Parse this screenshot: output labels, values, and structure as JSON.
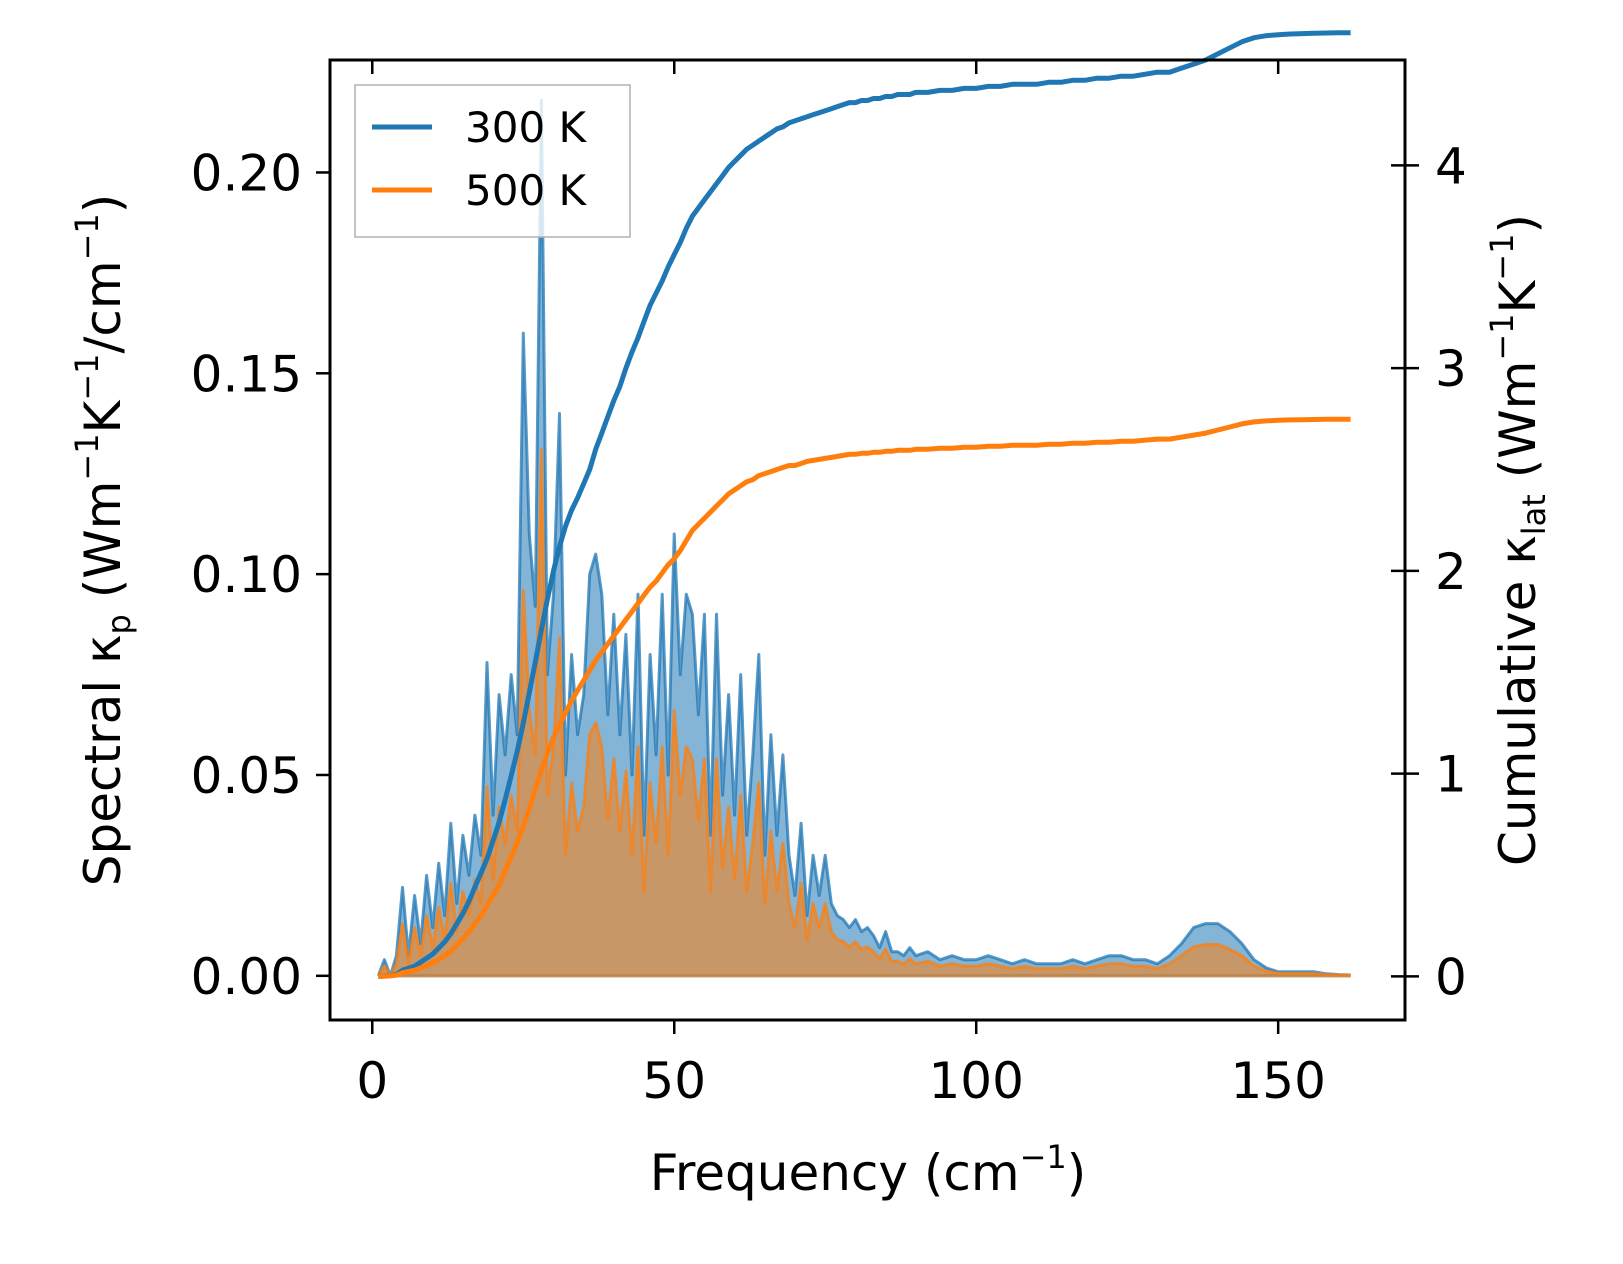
{
  "chart_data": {
    "type": "line",
    "xlabel": "Frequency (cm",
    "xlabel_sup": "−1",
    "xlabel_tail": ")",
    "ylabel_left": {
      "prefix": "Spectral κ",
      "sub": "p",
      "mid": " (Wm",
      "sup1": "−1",
      "k": "K",
      "sup2": "−1",
      "tail": "/cm",
      "sup3": "−1",
      "end": ")"
    },
    "ylabel_right": {
      "prefix": "Cumulative κ",
      "sub": "lat",
      "mid": " (Wm",
      "sup1": "−1",
      "k": "K",
      "sup2": "−1",
      "end": ")"
    },
    "xlim": [
      -7,
      171
    ],
    "ylim_left": [
      -0.011,
      0.228
    ],
    "ylim_right": [
      -0.215,
      4.52
    ],
    "x_ticks": [
      0,
      50,
      100,
      150
    ],
    "x_tick_labels": [
      "0",
      "50",
      "100",
      "150"
    ],
    "y_left_ticks": [
      0,
      0.05,
      0.1,
      0.15,
      0.2
    ],
    "y_left_tick_labels": [
      "0.00",
      "0.05",
      "0.10",
      "0.15",
      "0.20"
    ],
    "y_right_ticks": [
      0,
      1,
      2,
      3,
      4
    ],
    "y_right_tick_labels": [
      "0",
      "1",
      "2",
      "3",
      "4"
    ],
    "legend_position": "top-left",
    "x": [
      1,
      2,
      3,
      4,
      5,
      6,
      7,
      8,
      9,
      10,
      11,
      12,
      13,
      14,
      15,
      16,
      17,
      18,
      19,
      20,
      21,
      22,
      23,
      24,
      25,
      26,
      27,
      28,
      29,
      30,
      31,
      32,
      33,
      34,
      35,
      36,
      37,
      38,
      39,
      40,
      41,
      42,
      43,
      44,
      45,
      46,
      47,
      48,
      49,
      50,
      51,
      52,
      53,
      54,
      55,
      56,
      57,
      58,
      59,
      60,
      61,
      62,
      63,
      64,
      65,
      66,
      67,
      68,
      69,
      70,
      71,
      72,
      73,
      74,
      75,
      76,
      77,
      78,
      79,
      80,
      81,
      82,
      83,
      84,
      85,
      86,
      87,
      88,
      89,
      90,
      92,
      94,
      96,
      98,
      100,
      102,
      104,
      106,
      108,
      110,
      112,
      114,
      116,
      118,
      120,
      122,
      124,
      126,
      128,
      130,
      132,
      134,
      136,
      138,
      140,
      142,
      144,
      146,
      148,
      150,
      152,
      154,
      156,
      158,
      160,
      162
    ],
    "series": [
      {
        "name": "300 K",
        "color": "#1f77b4",
        "spectral": [
          0,
          0.004,
          0,
          0.005,
          0.022,
          0.005,
          0.02,
          0.008,
          0.025,
          0.012,
          0.028,
          0.015,
          0.038,
          0.018,
          0.035,
          0.025,
          0.04,
          0.03,
          0.078,
          0.04,
          0.07,
          0.055,
          0.075,
          0.06,
          0.16,
          0.11,
          0.092,
          0.218,
          0.075,
          0.095,
          0.14,
          0.05,
          0.08,
          0.06,
          0.07,
          0.1,
          0.105,
          0.095,
          0.065,
          0.09,
          0.06,
          0.085,
          0.05,
          0.095,
          0.035,
          0.08,
          0.055,
          0.095,
          0.05,
          0.11,
          0.075,
          0.095,
          0.09,
          0.065,
          0.09,
          0.035,
          0.09,
          0.045,
          0.07,
          0.04,
          0.075,
          0.035,
          0.055,
          0.08,
          0.03,
          0.06,
          0.035,
          0.055,
          0.03,
          0.02,
          0.038,
          0.015,
          0.03,
          0.02,
          0.03,
          0.018,
          0.015,
          0.014,
          0.012,
          0.014,
          0.011,
          0.012,
          0.01,
          0.007,
          0.011,
          0.006,
          0.006,
          0.005,
          0.007,
          0.005,
          0.006,
          0.004,
          0.005,
          0.004,
          0.004,
          0.005,
          0.004,
          0.003,
          0.004,
          0.003,
          0.003,
          0.003,
          0.004,
          0.003,
          0.004,
          0.005,
          0.005,
          0.004,
          0.004,
          0.003,
          0.005,
          0.008,
          0.012,
          0.013,
          0.013,
          0.011,
          0.008,
          0.004,
          0.002,
          0.001,
          0.001,
          0.001,
          0.001,
          0.0005,
          0.0003,
          0.0002
        ],
        "cumulative": [
          0,
          0.002,
          0.004,
          0.01,
          0.03,
          0.04,
          0.05,
          0.07,
          0.09,
          0.11,
          0.14,
          0.17,
          0.21,
          0.26,
          0.31,
          0.37,
          0.44,
          0.51,
          0.58,
          0.67,
          0.76,
          0.87,
          0.99,
          1.11,
          1.25,
          1.4,
          1.55,
          1.71,
          1.86,
          2.0,
          2.12,
          2.22,
          2.3,
          2.36,
          2.43,
          2.5,
          2.6,
          2.68,
          2.76,
          2.84,
          2.91,
          3.0,
          3.08,
          3.15,
          3.23,
          3.31,
          3.37,
          3.43,
          3.5,
          3.56,
          3.62,
          3.69,
          3.75,
          3.79,
          3.83,
          3.87,
          3.91,
          3.95,
          3.99,
          4.02,
          4.05,
          4.08,
          4.1,
          4.12,
          4.14,
          4.16,
          4.18,
          4.19,
          4.21,
          4.22,
          4.23,
          4.24,
          4.25,
          4.26,
          4.27,
          4.28,
          4.29,
          4.3,
          4.31,
          4.31,
          4.32,
          4.32,
          4.33,
          4.33,
          4.34,
          4.34,
          4.35,
          4.35,
          4.35,
          4.36,
          4.36,
          4.37,
          4.37,
          4.38,
          4.38,
          4.39,
          4.39,
          4.4,
          4.4,
          4.4,
          4.41,
          4.41,
          4.42,
          4.42,
          4.43,
          4.43,
          4.44,
          4.44,
          4.45,
          4.46,
          4.46,
          4.48,
          4.5,
          4.52,
          4.55,
          4.58,
          4.61,
          4.63,
          4.64,
          4.645,
          4.648,
          4.65,
          4.652,
          4.653,
          4.654,
          4.654
        ]
      },
      {
        "name": "500 K",
        "color": "#ff7f0e",
        "spectral": [
          0,
          0.0025,
          0,
          0.003,
          0.013,
          0.003,
          0.012,
          0.005,
          0.015,
          0.007,
          0.017,
          0.009,
          0.023,
          0.011,
          0.021,
          0.015,
          0.024,
          0.018,
          0.047,
          0.024,
          0.042,
          0.033,
          0.045,
          0.036,
          0.096,
          0.066,
          0.055,
          0.131,
          0.045,
          0.057,
          0.084,
          0.03,
          0.048,
          0.036,
          0.042,
          0.06,
          0.063,
          0.057,
          0.039,
          0.054,
          0.036,
          0.051,
          0.03,
          0.057,
          0.021,
          0.048,
          0.033,
          0.057,
          0.03,
          0.066,
          0.045,
          0.057,
          0.054,
          0.039,
          0.054,
          0.021,
          0.054,
          0.027,
          0.042,
          0.024,
          0.045,
          0.021,
          0.033,
          0.048,
          0.018,
          0.036,
          0.021,
          0.033,
          0.018,
          0.012,
          0.023,
          0.009,
          0.018,
          0.012,
          0.018,
          0.011,
          0.009,
          0.0085,
          0.0072,
          0.0085,
          0.0066,
          0.0072,
          0.006,
          0.0042,
          0.0066,
          0.0036,
          0.0036,
          0.003,
          0.0042,
          0.003,
          0.0036,
          0.0024,
          0.003,
          0.0024,
          0.0024,
          0.003,
          0.0024,
          0.0018,
          0.0024,
          0.0018,
          0.0018,
          0.0018,
          0.0024,
          0.0018,
          0.0024,
          0.003,
          0.003,
          0.0024,
          0.0024,
          0.0018,
          0.003,
          0.005,
          0.0072,
          0.0078,
          0.0078,
          0.0066,
          0.005,
          0.0024,
          0.0012,
          0.0006,
          0.0006,
          0.0006,
          0.0006,
          0.0003,
          0.0002,
          0.0001
        ],
        "cumulative": [
          0,
          0.0012,
          0.0024,
          0.006,
          0.018,
          0.024,
          0.03,
          0.042,
          0.054,
          0.066,
          0.084,
          0.1,
          0.125,
          0.155,
          0.185,
          0.22,
          0.26,
          0.3,
          0.35,
          0.4,
          0.45,
          0.52,
          0.59,
          0.66,
          0.74,
          0.83,
          0.92,
          1.02,
          1.1,
          1.18,
          1.24,
          1.3,
          1.36,
          1.41,
          1.46,
          1.51,
          1.56,
          1.6,
          1.64,
          1.68,
          1.72,
          1.76,
          1.8,
          1.84,
          1.88,
          1.92,
          1.95,
          1.99,
          2.03,
          2.06,
          2.1,
          2.15,
          2.2,
          2.23,
          2.26,
          2.29,
          2.32,
          2.35,
          2.38,
          2.4,
          2.42,
          2.44,
          2.45,
          2.47,
          2.48,
          2.49,
          2.5,
          2.51,
          2.52,
          2.52,
          2.53,
          2.54,
          2.545,
          2.55,
          2.555,
          2.56,
          2.565,
          2.57,
          2.575,
          2.575,
          2.58,
          2.58,
          2.585,
          2.585,
          2.59,
          2.59,
          2.595,
          2.595,
          2.595,
          2.6,
          2.6,
          2.605,
          2.605,
          2.61,
          2.61,
          2.615,
          2.615,
          2.62,
          2.62,
          2.62,
          2.625,
          2.625,
          2.63,
          2.63,
          2.635,
          2.635,
          2.64,
          2.64,
          2.645,
          2.65,
          2.65,
          2.66,
          2.67,
          2.68,
          2.695,
          2.71,
          2.725,
          2.735,
          2.74,
          2.743,
          2.745,
          2.746,
          2.747,
          2.748,
          2.748,
          2.748
        ]
      }
    ]
  }
}
